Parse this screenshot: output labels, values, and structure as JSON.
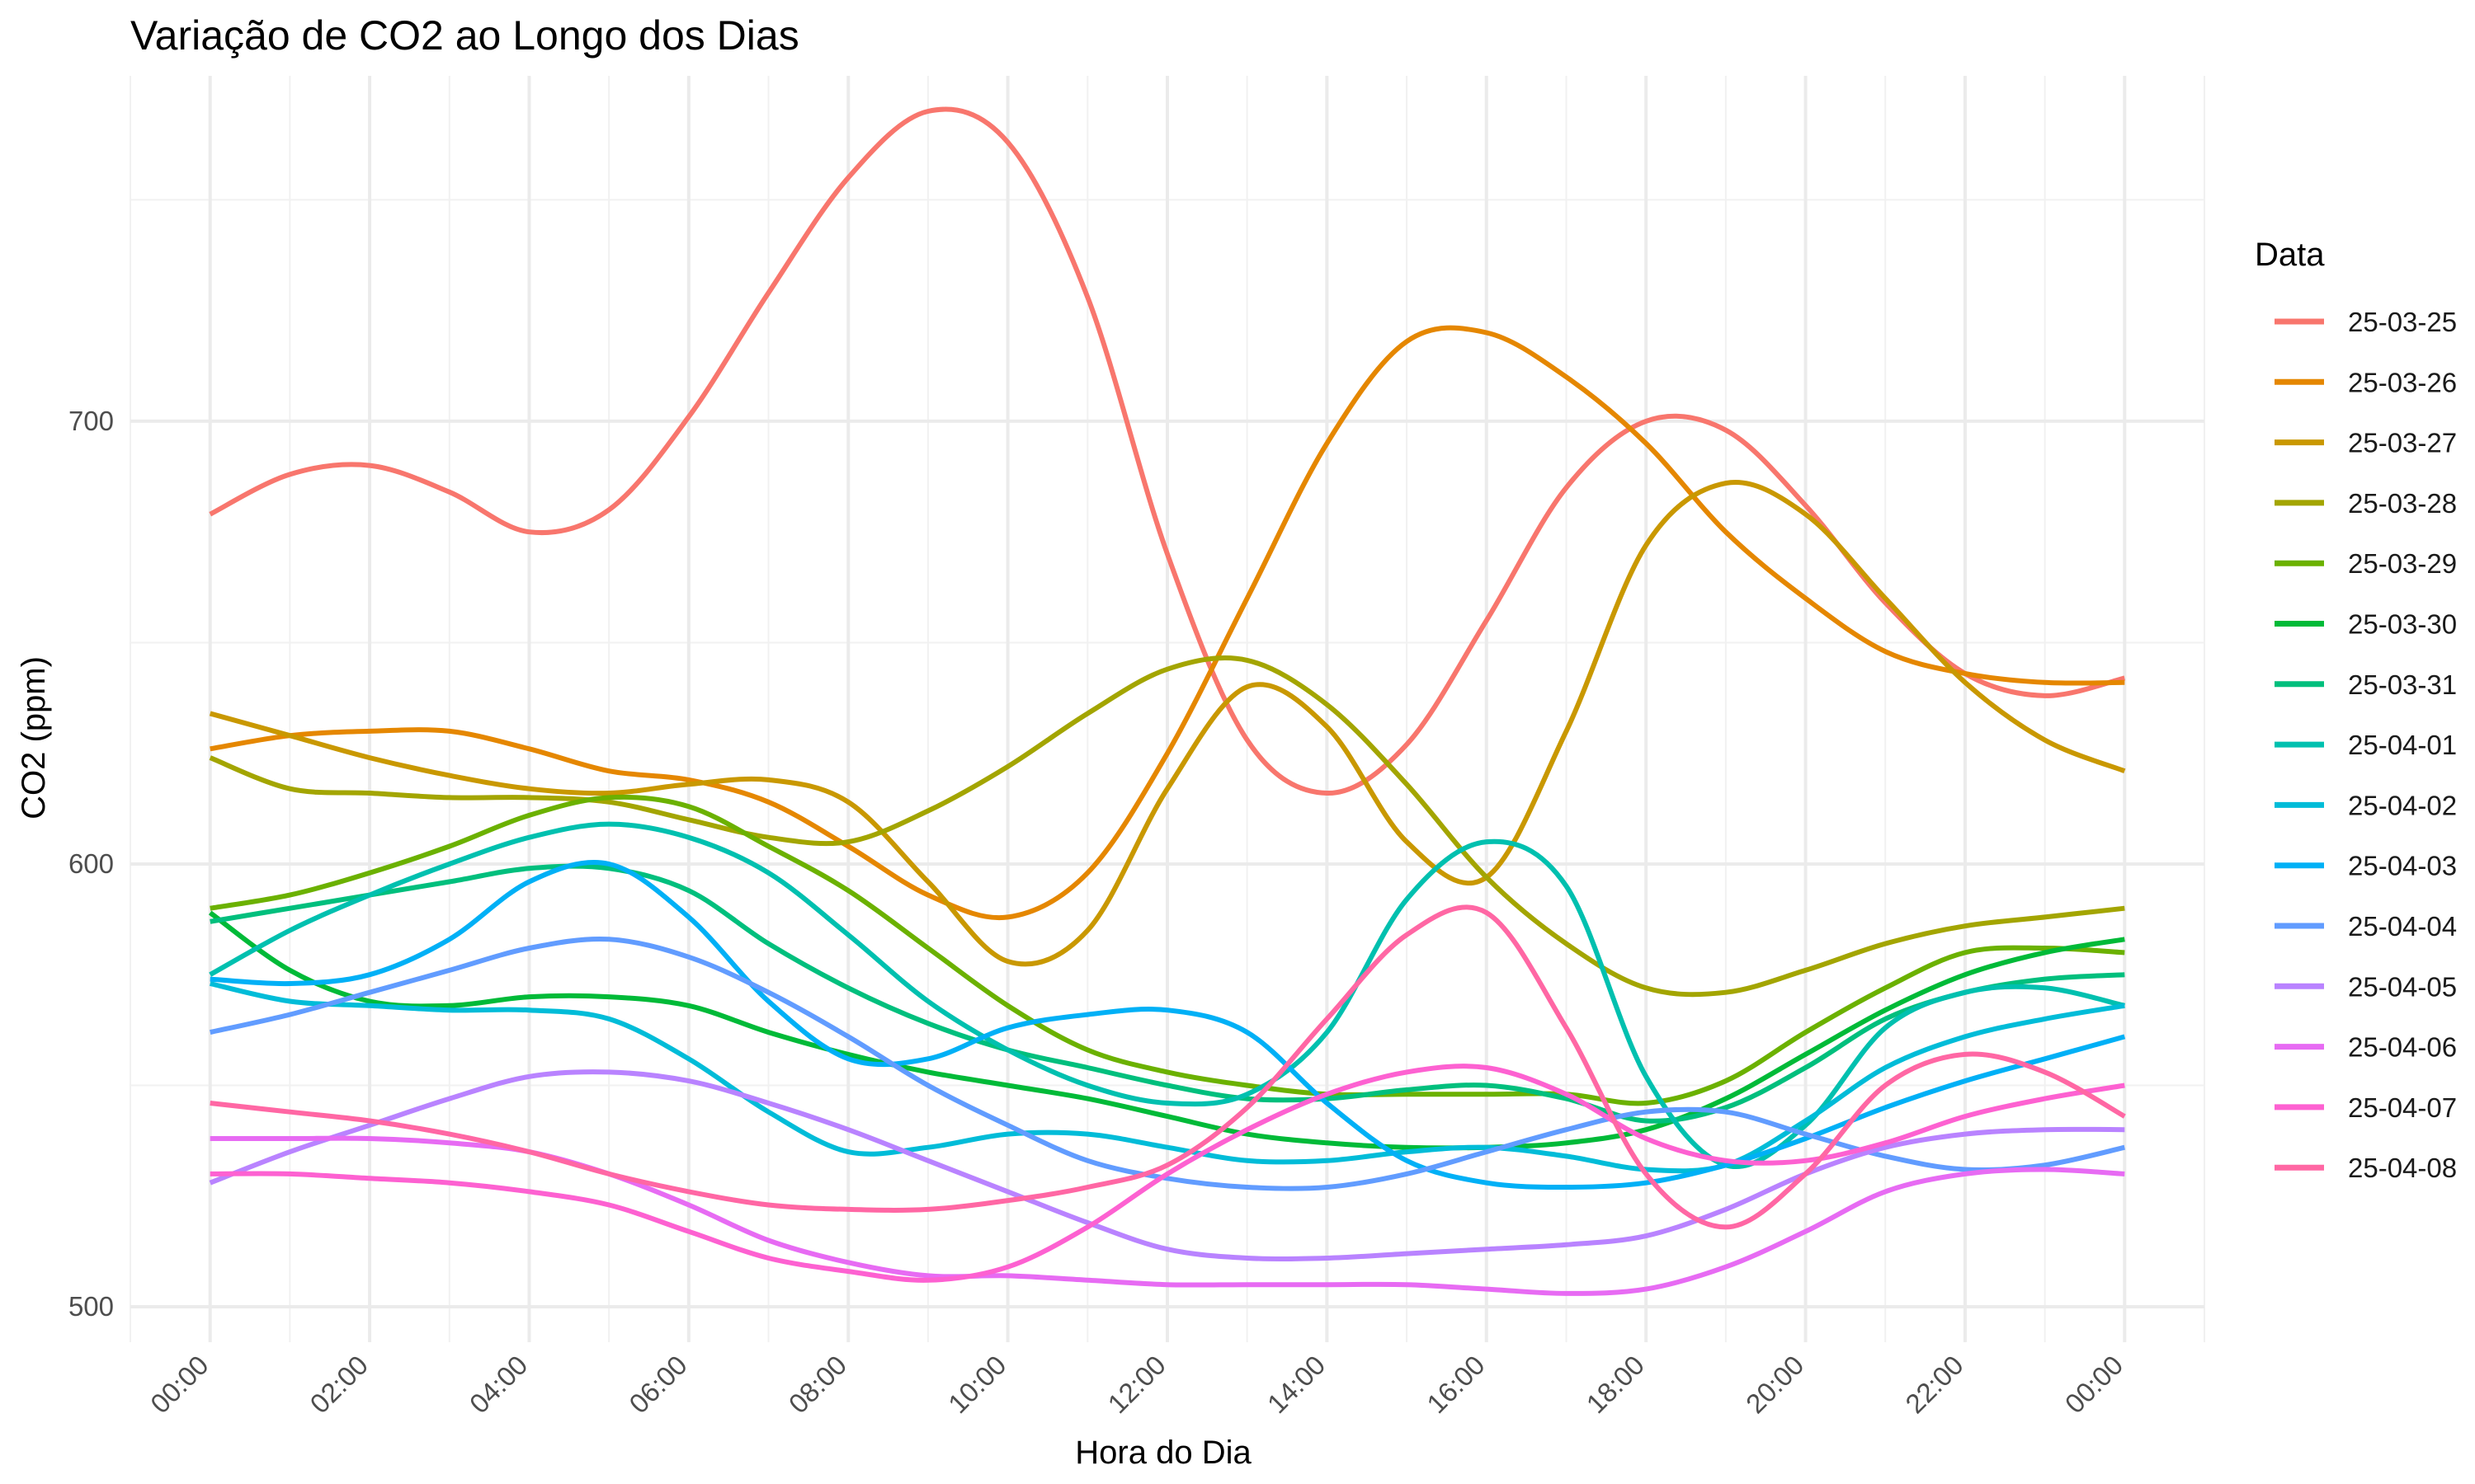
{
  "chart_data": {
    "type": "line",
    "title": "Variação de CO2 ao Longo dos Dias",
    "xlabel": "Hora do Dia",
    "ylabel": "CO2 (ppm)",
    "x_unit": "hours",
    "xlim": [
      -1,
      25
    ],
    "ylim": [
      492,
      778
    ],
    "x_ticks": [
      0,
      2,
      4,
      6,
      8,
      10,
      12,
      14,
      16,
      18,
      20,
      22,
      24
    ],
    "x_tick_labels": [
      "00:00",
      "02:00",
      "04:00",
      "06:00",
      "08:00",
      "10:00",
      "12:00",
      "14:00",
      "16:00",
      "18:00",
      "20:00",
      "22:00",
      "00:00"
    ],
    "y_ticks": [
      500,
      600,
      700
    ],
    "y_tick_labels": [
      "500",
      "600",
      "700"
    ],
    "grid": true,
    "legend_title": "Data",
    "legend_position": "right",
    "x": [
      0,
      1,
      2,
      3,
      4,
      5,
      6,
      7,
      8,
      9,
      10,
      11,
      12,
      13,
      14,
      15,
      16,
      17,
      18,
      19,
      20,
      21,
      22,
      23,
      24
    ],
    "series": [
      {
        "name": "25-03-25",
        "color": "#F8766D",
        "values": [
          679,
          688,
          690,
          684,
          675,
          680,
          701,
          729,
          755,
          770,
          763,
          728,
          670,
          628,
          616,
          627,
          655,
          685,
          700,
          698,
          681,
          659,
          643,
          638,
          642
        ]
      },
      {
        "name": "25-03-26",
        "color": "#E58700",
        "values": [
          626,
          629,
          630,
          630,
          626,
          621,
          619,
          614,
          604,
          593,
          588,
          598,
          625,
          660,
          695,
          718,
          720,
          710,
          695,
          675,
          660,
          648,
          643,
          641,
          641
        ]
      },
      {
        "name": "25-03-27",
        "color": "#C99800",
        "values": [
          634,
          629,
          624,
          620,
          617,
          616,
          618,
          619,
          614,
          596,
          578,
          585,
          617,
          640,
          631,
          605,
          597,
          630,
          672,
          686,
          679,
          660,
          641,
          628,
          621
        ]
      },
      {
        "name": "25-03-28",
        "color": "#A3A500",
        "values": [
          624,
          617,
          616,
          615,
          615,
          614,
          610,
          606,
          605,
          612,
          622,
          634,
          644,
          646,
          636,
          618,
          597,
          582,
          572,
          571,
          576,
          582,
          586,
          588,
          590
        ]
      },
      {
        "name": "25-03-29",
        "color": "#6BB100",
        "values": [
          590,
          593,
          598,
          604,
          611,
          615,
          613,
          604,
          594,
          581,
          568,
          558,
          553,
          550,
          548,
          548,
          548,
          548,
          546,
          551,
          562,
          572,
          580,
          581,
          580
        ]
      },
      {
        "name": "25-03-30",
        "color": "#00BA38",
        "values": [
          589,
          576,
          569,
          568,
          570,
          570,
          568,
          562,
          557,
          553,
          550,
          547,
          543,
          539,
          537,
          536,
          536,
          537,
          540,
          547,
          557,
          567,
          575,
          580,
          583
        ]
      },
      {
        "name": "25-03-31",
        "color": "#00BF7D",
        "values": [
          587,
          590,
          593,
          596,
          599,
          599,
          594,
          582,
          572,
          564,
          558,
          554,
          550,
          547,
          547,
          549,
          550,
          547,
          542,
          545,
          554,
          565,
          571,
          574,
          575
        ]
      },
      {
        "name": "25-04-01",
        "color": "#00C0AF",
        "values": [
          575,
          585,
          593,
          600,
          606,
          609,
          606,
          598,
          584,
          569,
          558,
          550,
          546,
          548,
          562,
          592,
          605,
          595,
          552,
          532,
          541,
          563,
          571,
          572,
          568
        ]
      },
      {
        "name": "25-04-02",
        "color": "#00BCD8",
        "values": [
          573,
          569,
          568,
          567,
          567,
          565,
          556,
          544,
          535,
          536,
          539,
          539,
          536,
          533,
          533,
          535,
          536,
          534,
          531,
          532,
          542,
          554,
          561,
          565,
          568
        ]
      },
      {
        "name": "25-04-03",
        "color": "#00B0F6",
        "values": [
          574,
          573,
          575,
          583,
          596,
          600,
          588,
          569,
          556,
          556,
          563,
          566,
          567,
          562,
          546,
          533,
          528,
          527,
          528,
          532,
          538,
          545,
          551,
          556,
          561
        ]
      },
      {
        "name": "25-04-04",
        "color": "#619CFF",
        "values": [
          562,
          566,
          571,
          576,
          581,
          583,
          579,
          571,
          561,
          550,
          541,
          533,
          529,
          527,
          527,
          530,
          535,
          540,
          544,
          544,
          539,
          534,
          531,
          532,
          536
        ]
      },
      {
        "name": "25-04-05",
        "color": "#B983FF",
        "values": [
          528,
          535,
          541,
          547,
          552,
          553,
          551,
          546,
          540,
          533,
          526,
          519,
          513,
          511,
          511,
          512,
          513,
          514,
          516,
          522,
          530,
          536,
          539,
          540,
          540
        ]
      },
      {
        "name": "25-04-06",
        "color": "#E76BF3",
        "values": [
          538,
          538,
          538,
          537,
          535,
          530,
          523,
          515,
          510,
          507,
          507,
          506,
          505,
          505,
          505,
          505,
          504,
          503,
          504,
          509,
          517,
          526,
          530,
          531,
          530
        ]
      },
      {
        "name": "25-04-07",
        "color": "#FD61D1",
        "values": [
          530,
          530,
          529,
          528,
          526,
          523,
          517,
          511,
          508,
          506,
          509,
          518,
          530,
          540,
          548,
          553,
          554,
          548,
          538,
          533,
          533,
          537,
          543,
          547,
          550
        ]
      },
      {
        "name": "25-04-08",
        "color": "#FF67A4",
        "values": [
          546,
          544,
          542,
          539,
          535,
          530,
          526,
          523,
          522,
          522,
          524,
          527,
          532,
          545,
          565,
          584,
          589,
          563,
          530,
          518,
          530,
          550,
          557,
          553,
          543
        ]
      }
    ]
  }
}
